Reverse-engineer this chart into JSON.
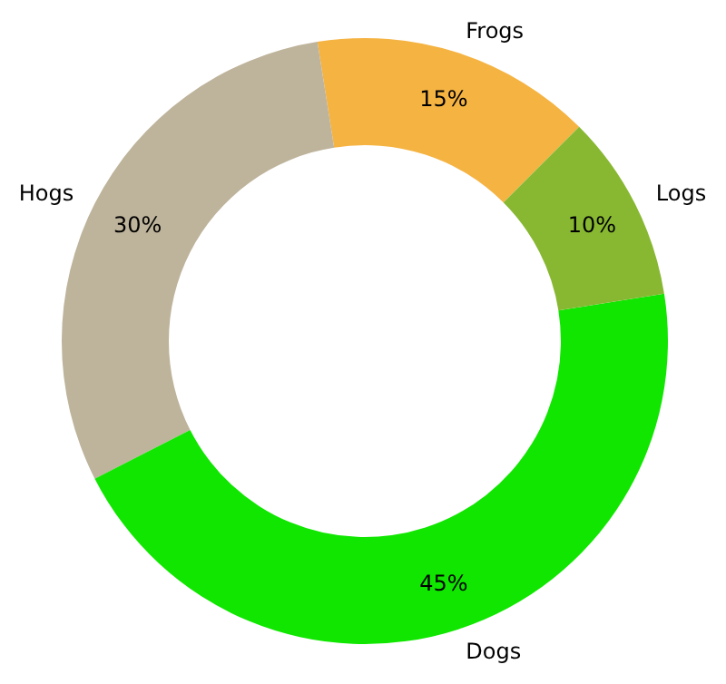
{
  "chart_data": {
    "type": "donut",
    "categories": [
      "Frogs",
      "Hogs",
      "Dogs",
      "Logs"
    ],
    "values": [
      15,
      30,
      45,
      10
    ],
    "colors": [
      "#f5b342",
      "#beb39b",
      "#10e600",
      "#88b832"
    ],
    "value_labels": [
      "15%",
      "30%",
      "45%",
      "10%"
    ],
    "legend": false
  }
}
